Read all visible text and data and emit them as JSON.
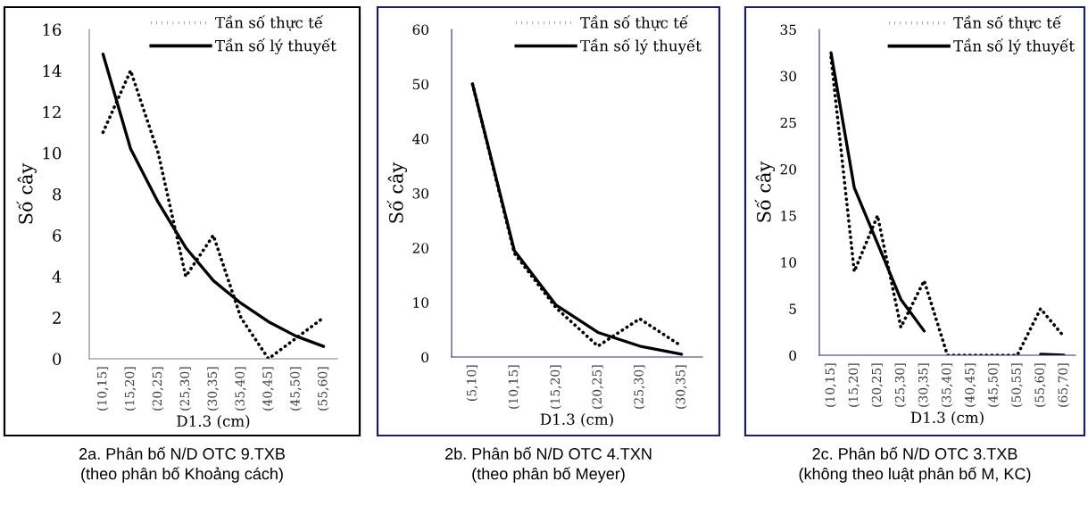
{
  "chart_data": [
    {
      "type": "line",
      "title": "2a. Phân bố N/D OTC 9.TXB",
      "subtitle": "(theo phân bố Khoảng cách)",
      "xlabel": "D1.3 (cm)",
      "ylabel": "Số cây",
      "categories": [
        "(10,15]",
        "(15,20]",
        "(20,25]",
        "(25,30]",
        "(30,35]",
        "(35,40]",
        "(40,45]",
        "(45,50]",
        "(55,60]"
      ],
      "ylim": [
        0,
        16
      ],
      "yticks": [
        0,
        2,
        4,
        6,
        8,
        10,
        12,
        14,
        16
      ],
      "legend": "top right",
      "grid": false,
      "marker": "none",
      "series": [
        {
          "name": "Tần số thực tế",
          "color": "#000000",
          "line_style": "dotted",
          "values": [
            11,
            14,
            10,
            4,
            6,
            2,
            0,
            1,
            2
          ]
        },
        {
          "name": "Tần số lý thuyết",
          "color": "#000000",
          "line_style": "solid",
          "values": [
            14.8,
            10.2,
            7.6,
            5.4,
            3.8,
            2.7,
            1.8,
            1.1,
            0.6
          ]
        }
      ]
    },
    {
      "type": "line",
      "title": "2b. Phân bố N/D OTC 4.TXN",
      "subtitle": "(theo phân bố Meyer)",
      "xlabel": "D1.3 (cm)",
      "ylabel": "Số cây",
      "categories": [
        "(5,10]",
        "(10,15]",
        "(15,20]",
        "(20,25]",
        "(25,30]",
        "(30,35]"
      ],
      "ylim": [
        0,
        60
      ],
      "yticks": [
        0,
        10,
        20,
        30,
        40,
        50,
        60
      ],
      "legend": "top right",
      "grid": false,
      "marker": "none",
      "series": [
        {
          "name": "Tần số thực tế",
          "color": "#000000",
          "line_style": "dotted",
          "values": [
            50,
            19,
            9,
            2,
            7,
            2
          ]
        },
        {
          "name": "Tần số lý thuyết",
          "color": "#000000",
          "line_style": "solid",
          "values": [
            50,
            19.5,
            9.5,
            4.5,
            2,
            0.5
          ]
        }
      ]
    },
    {
      "type": "line",
      "title": "2c. Phân bố N/D OTC 3.TXB",
      "subtitle": "(không theo luật phân bố M, KC)",
      "xlabel": "D1.3 (cm)",
      "ylabel": "Số cây",
      "categories": [
        "(10,15]",
        "(15,20]",
        "(20,25]",
        "(25,30]",
        "(30,35]",
        "(35,40]",
        "(40,45]",
        "(45,50]",
        "(50,55]",
        "(55,60]",
        "(65,70]"
      ],
      "ylim": [
        0,
        35
      ],
      "yticks": [
        0,
        5,
        10,
        15,
        20,
        25,
        30,
        35
      ],
      "legend": "top right",
      "grid": false,
      "marker": "none",
      "series": [
        {
          "name": "Tần số thực tế",
          "color": "#000000",
          "line_style": "dotted",
          "values": [
            32,
            9,
            15,
            3,
            8,
            0,
            0,
            0,
            0,
            5,
            2
          ]
        },
        {
          "name": "Tần số lý thuyết",
          "color": "#000000",
          "line_style": "solid",
          "values": [
            32.5,
            18,
            12,
            6,
            2.6,
            null,
            null,
            null,
            null,
            0.1,
            0
          ]
        }
      ]
    }
  ]
}
